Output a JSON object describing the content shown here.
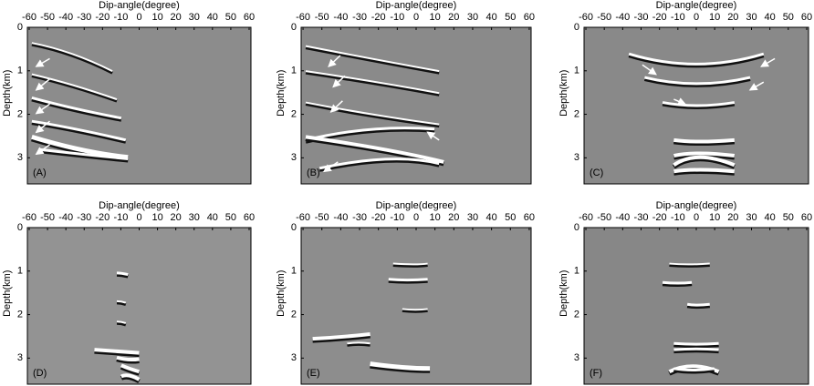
{
  "chart_data": [
    {
      "type": "image",
      "panel_label": "(A)",
      "xlabel": "Dip-angle(degree)",
      "ylabel": "Depth(km)",
      "xlim": [
        -61,
        61
      ],
      "ylim": [
        0,
        3.6
      ],
      "xticks": [
        -60,
        -50,
        -40,
        -30,
        -20,
        -10,
        0,
        10,
        20,
        30,
        40,
        50,
        60
      ],
      "yticks": [
        0,
        1,
        2,
        3
      ]
    },
    {
      "type": "image",
      "panel_label": "(B)",
      "xlabel": "Dip-angle(degree)",
      "ylabel": "Depth(km)",
      "xlim": [
        -61,
        61
      ],
      "ylim": [
        0,
        3.6
      ],
      "xticks": [
        -60,
        -50,
        -40,
        -30,
        -20,
        -10,
        0,
        10,
        20,
        30,
        40,
        50,
        60
      ],
      "yticks": [
        0,
        1,
        2,
        3
      ]
    },
    {
      "type": "image",
      "panel_label": "(C)",
      "xlabel": "Dip-angle(degree)",
      "ylabel": "Depth(km)",
      "xlim": [
        -61,
        61
      ],
      "ylim": [
        0,
        3.6
      ],
      "xticks": [
        -60,
        -50,
        -40,
        -30,
        -20,
        -10,
        0,
        10,
        20,
        30,
        40,
        50,
        60
      ],
      "yticks": [
        0,
        1,
        2,
        3
      ]
    },
    {
      "type": "image",
      "panel_label": "(D)",
      "xlabel": "Dip-angle(degree)",
      "ylabel": "Depth(km)",
      "xlim": [
        -61,
        61
      ],
      "ylim": [
        0,
        3.6
      ],
      "xticks": [
        -60,
        -50,
        -40,
        -30,
        -20,
        -10,
        0,
        10,
        20,
        30,
        40,
        50,
        60
      ],
      "yticks": [
        0,
        1,
        2,
        3
      ]
    },
    {
      "type": "image",
      "panel_label": "(E)",
      "xlabel": "Dip-angle(degree)",
      "ylabel": "Depth(km)",
      "xlim": [
        -61,
        61
      ],
      "ylim": [
        0,
        3.6
      ],
      "xticks": [
        -60,
        -50,
        -40,
        -30,
        -20,
        -10,
        0,
        10,
        20,
        30,
        40,
        50,
        60
      ],
      "yticks": [
        0,
        1,
        2,
        3
      ]
    },
    {
      "type": "image",
      "panel_label": "(F)",
      "xlabel": "Dip-angle(degree)",
      "ylabel": "Depth(km)",
      "xlim": [
        -61,
        61
      ],
      "ylim": [
        0,
        3.6
      ],
      "xticks": [
        -60,
        -50,
        -40,
        -30,
        -20,
        -10,
        0,
        10,
        20,
        30,
        40,
        50,
        60
      ],
      "yticks": [
        0,
        1,
        2,
        3
      ]
    }
  ]
}
